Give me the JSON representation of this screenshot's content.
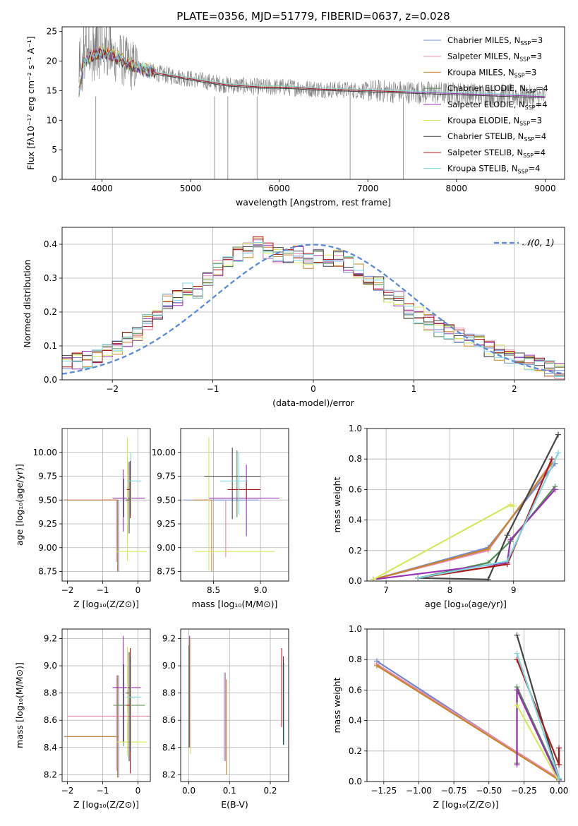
{
  "figure": {
    "title": "PLATE=0356, MJD=51779, FIBERID=0637, z=0.028"
  },
  "series": [
    {
      "name": "Chabrier MILES",
      "nssp": "3",
      "color": "#6f8bd6"
    },
    {
      "name": "Salpeter MILES",
      "nssp": "3",
      "color": "#e98ab1"
    },
    {
      "name": "Kroupa MILES",
      "nssp": "3",
      "color": "#c9852a"
    },
    {
      "name": "Chabrier ELODIE",
      "nssp": "4",
      "color": "#4f8a4f"
    },
    {
      "name": "Salpeter ELODIE",
      "nssp": "4",
      "color": "#9b30b4"
    },
    {
      "name": "Kroupa ELODIE",
      "nssp": "3",
      "color": "#d7e85c"
    },
    {
      "name": "Chabrier STELIB",
      "nssp": "4",
      "color": "#444444"
    },
    {
      "name": "Salpeter STELIB",
      "nssp": "4",
      "color": "#b01818"
    },
    {
      "name": "Kroupa STELIB",
      "nssp": "4",
      "color": "#7dd6e0"
    }
  ],
  "chart_data": [
    {
      "id": "spectrum",
      "type": "line",
      "title": "PLATE=0356, MJD=51779, FIBERID=0637, z=0.028",
      "xlabel": "wavelength [Angstrom, rest frame]",
      "ylabel": "Flux [fλ10⁻¹⁷ erg cm⁻² s⁻¹ A⁻¹]",
      "xlim": [
        3550,
        9220
      ],
      "ylim": [
        0,
        25.8
      ],
      "xticks": [
        4000,
        5000,
        6000,
        7000,
        8000,
        9000
      ],
      "yticks": [
        0,
        5,
        10,
        15,
        20,
        25
      ],
      "data_color": "#808080",
      "data_range": [
        3740,
        9000
      ],
      "legend_position": "upper right",
      "continuum": {
        "x": [
          3740,
          3800,
          3900,
          4000,
          4100,
          4200,
          4300,
          4400,
          4500,
          4600,
          4800,
          5000,
          5200,
          5400,
          5600,
          5800,
          6000,
          6200,
          6400,
          6600,
          6800,
          7000,
          7200,
          7400,
          7600,
          7800,
          8000,
          8200,
          8400,
          8600,
          8800,
          9000
        ],
        "y": [
          15,
          20,
          21,
          21.5,
          21,
          20.5,
          19.5,
          19,
          18.5,
          18,
          17.5,
          17,
          16.5,
          16,
          15.8,
          15.6,
          15.6,
          15.5,
          15.3,
          15.2,
          15.1,
          15,
          14.9,
          14.8,
          14.7,
          14.6,
          14.5,
          14.4,
          14.3,
          14.2,
          14.1,
          14.0
        ]
      }
    },
    {
      "id": "residuals",
      "type": "step",
      "xlabel": "(data-model)/error",
      "ylabel": "Normed distribution",
      "xlim": [
        -2.5,
        2.5
      ],
      "ylim": [
        0,
        0.45
      ],
      "xticks": [
        -2,
        -1,
        0,
        1,
        2
      ],
      "yticks": [
        0,
        0.1,
        0.2,
        0.3,
        0.4
      ],
      "gaussian_label": "𝒩(0, 1)",
      "gaussian_color": "#5b8ad8",
      "legend_position": "upper right",
      "bins": [
        -2.5,
        -2.4,
        -2.3,
        -2.2,
        -2.1,
        -2.0,
        -1.9,
        -1.8,
        -1.7,
        -1.6,
        -1.5,
        -1.4,
        -1.3,
        -1.2,
        -1.1,
        -1.0,
        -0.9,
        -0.8,
        -0.7,
        -0.6,
        -0.5,
        -0.4,
        -0.3,
        -0.2,
        -0.1,
        0.0,
        0.1,
        0.2,
        0.3,
        0.4,
        0.5,
        0.6,
        0.7,
        0.8,
        0.9,
        1.0,
        1.1,
        1.2,
        1.3,
        1.4,
        1.5,
        1.6,
        1.7,
        1.8,
        1.9,
        2.0,
        2.1,
        2.2,
        2.3,
        2.4,
        2.5
      ],
      "base_counts": [
        0.05,
        0.055,
        0.06,
        0.07,
        0.085,
        0.09,
        0.12,
        0.14,
        0.17,
        0.2,
        0.23,
        0.24,
        0.27,
        0.26,
        0.3,
        0.33,
        0.35,
        0.37,
        0.38,
        0.4,
        0.38,
        0.37,
        0.36,
        0.37,
        0.35,
        0.36,
        0.35,
        0.36,
        0.34,
        0.32,
        0.3,
        0.28,
        0.25,
        0.24,
        0.2,
        0.19,
        0.17,
        0.15,
        0.14,
        0.13,
        0.12,
        0.11,
        0.09,
        0.08,
        0.07,
        0.06,
        0.05,
        0.045,
        0.035,
        0.025
      ]
    },
    {
      "id": "age_vs_Z",
      "type": "errorbar",
      "xlabel": "Z [log₁₀(Z/Z⊙)]",
      "ylabel": "age  [log₁₀(age/yr)]",
      "xlim": [
        -2.15,
        0.35
      ],
      "ylim": [
        8.65,
        10.25
      ],
      "xticks": [
        -2,
        -1,
        0
      ],
      "yticks": [
        8.75,
        9.0,
        9.25,
        9.5,
        9.75,
        10.0
      ],
      "points": [
        {
          "s": 0,
          "x": -0.55,
          "y": 9.5,
          "xe": [
            1.55,
            0.0
          ],
          "ye": [
            0.75,
            0.0
          ]
        },
        {
          "s": 1,
          "x": -0.6,
          "y": 9.5,
          "xe": [
            1.4,
            0.0
          ],
          "ye": [
            0.65,
            0.0
          ]
        },
        {
          "s": 2,
          "x": -0.58,
          "y": 9.5,
          "xe": [
            1.5,
            0.0
          ],
          "ye": [
            0.75,
            0.0
          ]
        },
        {
          "s": 3,
          "x": -0.4,
          "y": 9.52,
          "xe": [
            0.3,
            0.6
          ],
          "ye": [
            0.2,
            0.2
          ]
        },
        {
          "s": 4,
          "x": -0.42,
          "y": 9.52,
          "xe": [
            0.3,
            0.6
          ],
          "ye": [
            0.35,
            0.3
          ]
        },
        {
          "s": 5,
          "x": -0.3,
          "y": 8.96,
          "xe": [
            0.3,
            0.55
          ],
          "ye": [
            0.1,
            1.2
          ]
        },
        {
          "s": 6,
          "x": -0.25,
          "y": 9.5,
          "xe": [
            0.1,
            0.0
          ],
          "ye": [
            0.35,
            0.4
          ]
        },
        {
          "s": 7,
          "x": -0.22,
          "y": 9.61,
          "xe": [
            0.1,
            0.0
          ],
          "ye": [
            0.3,
            0.3
          ]
        },
        {
          "s": 8,
          "x": -0.2,
          "y": 9.7,
          "xe": [
            0.1,
            0.3
          ],
          "ye": [
            0.35,
            0.3
          ]
        }
      ]
    },
    {
      "id": "age_vs_mass",
      "type": "errorbar",
      "xlabel": "mass [log₁₀(M/M⊙)]",
      "ylabel": "",
      "xlim": [
        8.15,
        9.3
      ],
      "ylim": [
        8.65,
        10.25
      ],
      "xticks": [
        8.5,
        9.0
      ],
      "yticks": [
        8.75,
        9.0,
        9.25,
        9.5,
        9.75,
        10.0
      ],
      "points": [
        {
          "s": 0,
          "x": 8.48,
          "y": 9.5,
          "xe": [
            0.3,
            0.5
          ],
          "ye": [
            0.0,
            0.0
          ]
        },
        {
          "s": 1,
          "x": 8.63,
          "y": 9.5,
          "xe": [
            0.0,
            0.0
          ],
          "ye": [
            0.6,
            0.0
          ]
        },
        {
          "s": 2,
          "x": 8.48,
          "y": 9.5,
          "xe": [
            0.2,
            0.0
          ],
          "ye": [
            0.75,
            0.0
          ]
        },
        {
          "s": 3,
          "x": 8.75,
          "y": 9.52,
          "xe": [
            0.3,
            0.3
          ],
          "ye": [
            0.2,
            0.5
          ]
        },
        {
          "s": 4,
          "x": 8.85,
          "y": 9.52,
          "xe": [
            0.4,
            0.35
          ],
          "ye": [
            0.4,
            0.35
          ]
        },
        {
          "s": 5,
          "x": 8.45,
          "y": 8.96,
          "xe": [
            0.15,
            0.7
          ],
          "ye": [
            0.2,
            1.2
          ]
        },
        {
          "s": 6,
          "x": 8.7,
          "y": 9.75,
          "xe": [
            0.3,
            0.3
          ],
          "ye": [
            0.45,
            0.3
          ]
        },
        {
          "s": 7,
          "x": 8.85,
          "y": 9.61,
          "xe": [
            0.2,
            0.15
          ],
          "ye": [
            0.1,
            0.1
          ]
        },
        {
          "s": 8,
          "x": 8.77,
          "y": 9.7,
          "xe": [
            0.2,
            0.1
          ],
          "ye": [
            0.35,
            0.3
          ]
        }
      ]
    },
    {
      "id": "weight_vs_age",
      "type": "line",
      "xlabel": "age  [log₁₀(age/yr)]",
      "ylabel": "mass weight",
      "xlim": [
        6.7,
        9.8
      ],
      "ylim": [
        0,
        1.0
      ],
      "xticks": [
        7,
        8,
        9
      ],
      "yticks": [
        0.0,
        0.2,
        0.4,
        0.6,
        0.8,
        1.0
      ],
      "lines": [
        {
          "s": 0,
          "x": [
            6.8,
            8.6,
            9.65
          ],
          "y": [
            0.01,
            0.22,
            0.77
          ]
        },
        {
          "s": 1,
          "x": [
            6.8,
            8.6,
            9.6
          ],
          "y": [
            0.01,
            0.2,
            0.78
          ]
        },
        {
          "s": 2,
          "x": [
            6.8,
            8.6,
            9.6
          ],
          "y": [
            0.01,
            0.21,
            0.77
          ]
        },
        {
          "s": 3,
          "x": [
            7.5,
            8.6,
            8.95,
            9.65
          ],
          "y": [
            0.02,
            0.12,
            0.26,
            0.62
          ]
        },
        {
          "s": 4,
          "x": [
            6.8,
            8.9,
            8.95,
            9.65
          ],
          "y": [
            0.01,
            0.12,
            0.27,
            0.6
          ]
        },
        {
          "s": 5,
          "x": [
            6.8,
            8.95,
            9.0
          ],
          "y": [
            0.01,
            0.5,
            0.49
          ]
        },
        {
          "s": 6,
          "x": [
            7.5,
            8.6,
            8.9,
            9.7
          ],
          "y": [
            0.02,
            0.01,
            0.3,
            0.96
          ]
        },
        {
          "s": 7,
          "x": [
            7.5,
            8.9,
            9.6
          ],
          "y": [
            0.02,
            0.11,
            0.8
          ]
        },
        {
          "s": 8,
          "x": [
            7.5,
            8.9,
            9.7
          ],
          "y": [
            0.02,
            0.13,
            0.84
          ]
        }
      ]
    },
    {
      "id": "mass_vs_Z",
      "type": "errorbar",
      "xlabel": "Z [log₁₀(Z/Z⊙)]",
      "ylabel": "mass [log₁₀(M/M⊙)]",
      "xlim": [
        -2.15,
        0.35
      ],
      "ylim": [
        8.15,
        9.27
      ],
      "xticks": [
        -2,
        -1,
        0
      ],
      "yticks": [
        8.2,
        8.4,
        8.6,
        8.8,
        9.0,
        9.2
      ],
      "points": [
        {
          "s": 0,
          "x": -0.55,
          "y": 8.48,
          "xe": [
            1.55,
            0.0
          ],
          "ye": [
            0.3,
            0.45
          ]
        },
        {
          "s": 1,
          "x": -0.6,
          "y": 8.63,
          "xe": [
            1.4,
            1.0
          ],
          "ye": [
            0.4,
            0.3
          ]
        },
        {
          "s": 2,
          "x": -0.58,
          "y": 8.48,
          "xe": [
            1.5,
            0.0
          ],
          "ye": [
            0.3,
            0.45
          ]
        },
        {
          "s": 3,
          "x": -0.4,
          "y": 8.71,
          "xe": [
            0.3,
            0.6
          ],
          "ye": [
            0.3,
            0.3
          ]
        },
        {
          "s": 4,
          "x": -0.42,
          "y": 8.84,
          "xe": [
            0.3,
            0.5
          ],
          "ye": [
            0.4,
            0.38
          ]
        },
        {
          "s": 5,
          "x": -0.3,
          "y": 8.44,
          "xe": [
            0.3,
            0.55
          ],
          "ye": [
            0.1,
            0.7
          ]
        },
        {
          "s": 6,
          "x": -0.25,
          "y": 8.8,
          "xe": [
            0.1,
            0.0
          ],
          "ye": [
            0.5,
            0.3
          ]
        },
        {
          "s": 7,
          "x": -0.22,
          "y": 8.71,
          "xe": [
            0.1,
            0.0
          ],
          "ye": [
            0.5,
            0.42
          ]
        },
        {
          "s": 8,
          "x": -0.2,
          "y": 8.77,
          "xe": [
            0.1,
            0.3
          ],
          "ye": [
            0.4,
            0.3
          ]
        }
      ]
    },
    {
      "id": "mass_vs_ebv",
      "type": "errorbar",
      "xlabel": "E(B-V)",
      "ylabel": "",
      "xlim": [
        -0.02,
        0.245
      ],
      "ylim": [
        8.15,
        9.27
      ],
      "xticks": [
        0.0,
        0.1,
        0.2
      ],
      "yticks": [
        8.2,
        8.4,
        8.6,
        8.8,
        9.0,
        9.2
      ],
      "points": [
        {
          "s": 0,
          "x": 0.087,
          "y": 8.6,
          "xe": [
            0.0,
            0.0
          ],
          "ye": [
            0.3,
            0.35
          ]
        },
        {
          "s": 1,
          "x": 0.09,
          "y": 8.6,
          "xe": [
            0.0,
            0.0
          ],
          "ye": [
            0.3,
            0.35
          ]
        },
        {
          "s": 2,
          "x": 0.092,
          "y": 8.55,
          "xe": [
            0.0,
            0.0
          ],
          "ye": [
            0.35,
            0.35
          ]
        },
        {
          "s": 3,
          "x": 0.0,
          "y": 8.8,
          "xe": [
            0.0,
            0.0
          ],
          "ye": [
            0.4,
            0.35
          ]
        },
        {
          "s": 4,
          "x": 0.002,
          "y": 8.8,
          "xe": [
            0.0,
            0.0
          ],
          "ye": [
            0.4,
            0.42
          ]
        },
        {
          "s": 5,
          "x": 0.004,
          "y": 8.7,
          "xe": [
            0.0,
            0.0
          ],
          "ye": [
            0.35,
            0.5
          ]
        },
        {
          "s": 6,
          "x": 0.232,
          "y": 8.75,
          "xe": [
            0.0,
            0.0
          ],
          "ye": [
            0.33,
            0.32
          ]
        },
        {
          "s": 7,
          "x": 0.228,
          "y": 8.85,
          "xe": [
            0.0,
            0.0
          ],
          "ye": [
            0.3,
            0.28
          ]
        },
        {
          "s": 8,
          "x": 0.234,
          "y": 8.72,
          "xe": [
            0.0,
            0.0
          ],
          "ye": [
            0.3,
            0.3
          ]
        }
      ]
    },
    {
      "id": "weight_vs_Z",
      "type": "line",
      "xlabel": "Z [log₁₀(Z/Z⊙)]",
      "ylabel": "mass weight",
      "xlim": [
        -1.37,
        0.04
      ],
      "ylim": [
        0,
        1.0
      ],
      "xticks": [
        -1.25,
        -1.0,
        -0.75,
        -0.5,
        -0.25,
        0.0
      ],
      "yticks": [
        0.0,
        0.2,
        0.4,
        0.6,
        0.8,
        1.0
      ],
      "lines": [
        {
          "s": 0,
          "x": [
            -1.3,
            0.0
          ],
          "y": [
            0.79,
            0.01
          ]
        },
        {
          "s": 1,
          "x": [
            -1.3,
            0.0
          ],
          "y": [
            0.77,
            0.02
          ]
        },
        {
          "s": 2,
          "x": [
            -1.3,
            0.0
          ],
          "y": [
            0.76,
            0.01
          ]
        },
        {
          "s": 3,
          "x": [
            -0.3,
            -0.3,
            0.0
          ],
          "y": [
            0.12,
            0.62,
            0.02
          ]
        },
        {
          "s": 4,
          "x": [
            -0.3,
            -0.3,
            0.0
          ],
          "y": [
            0.11,
            0.6,
            0.01
          ]
        },
        {
          "s": 5,
          "x": [
            -0.3,
            0.0
          ],
          "y": [
            0.5,
            0.0
          ]
        },
        {
          "s": 6,
          "x": [
            -0.3,
            0.0
          ],
          "y": [
            0.96,
            0.02
          ]
        },
        {
          "s": 7,
          "x": [
            -0.3,
            0.0,
            0.0
          ],
          "y": [
            0.8,
            0.11,
            0.22
          ]
        },
        {
          "s": 8,
          "x": [
            -0.3,
            0.0
          ],
          "y": [
            0.84,
            0.02
          ]
        }
      ]
    }
  ]
}
